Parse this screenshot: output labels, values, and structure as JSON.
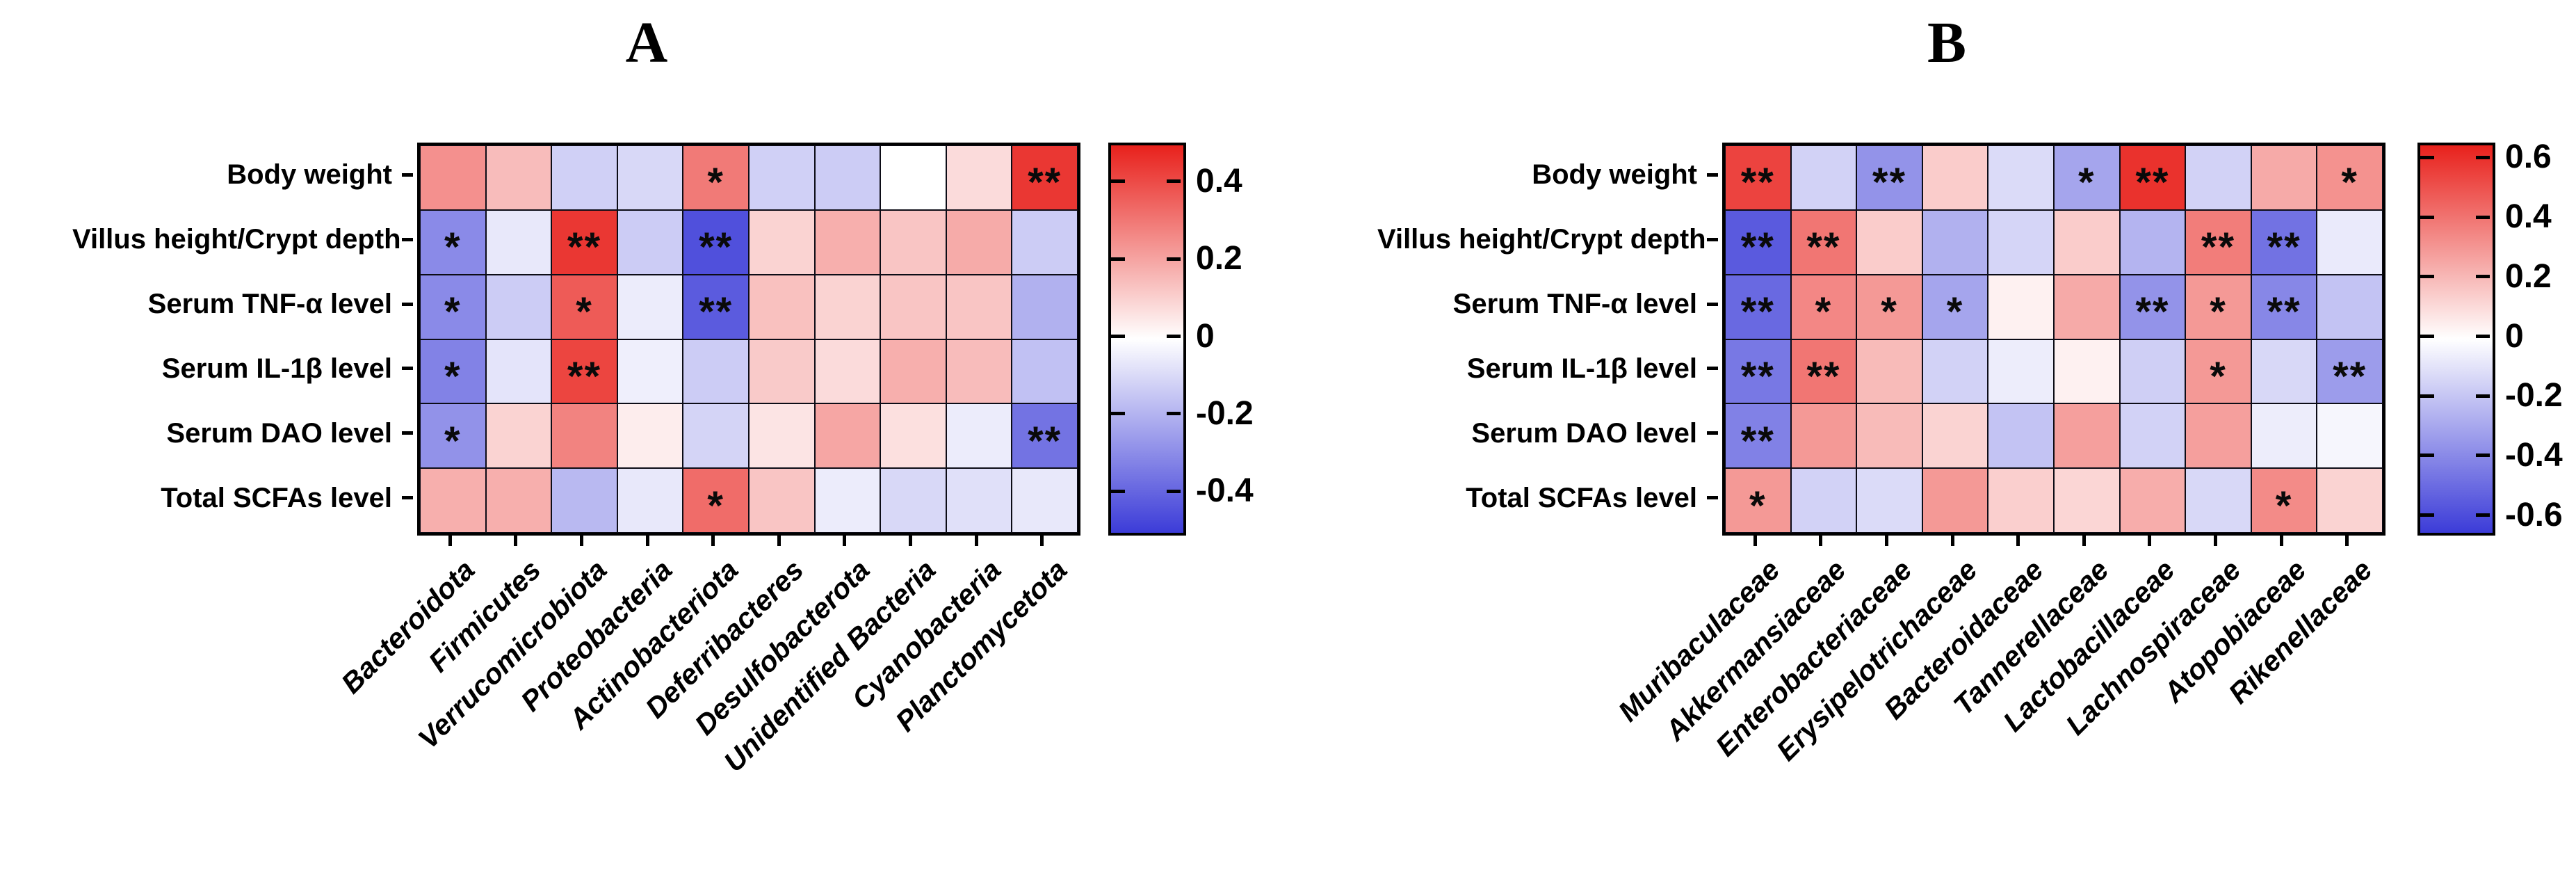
{
  "panel_titles": [
    "A",
    "B"
  ],
  "chart_data": [
    {
      "type": "heatmap",
      "title": "A",
      "rows": [
        "Body weight",
        "Villus height/Crypt depth",
        "Serum TNF-α level",
        "Serum IL-1β level",
        "Serum DAO level",
        "Total SCFAs level"
      ],
      "columns": [
        "Bacteroidota",
        "Firmicutes",
        "Verrucomicrobiota",
        "Proteobacteria",
        "Actinobacteriota",
        "Deferribacteres",
        "Desulfobacterota",
        "Unidentified Bacteria",
        "Cyanobacteria",
        "Planctomycetota"
      ],
      "values": [
        [
          0.25,
          0.15,
          -0.12,
          -0.1,
          0.3,
          -0.12,
          -0.13,
          0.0,
          0.08,
          0.45
        ],
        [
          -0.3,
          -0.06,
          0.45,
          -0.13,
          -0.45,
          0.1,
          0.18,
          0.13,
          0.19,
          -0.13
        ],
        [
          -0.3,
          -0.13,
          0.37,
          -0.05,
          -0.42,
          0.14,
          0.1,
          0.13,
          0.13,
          -0.2
        ],
        [
          -0.32,
          -0.07,
          0.42,
          -0.04,
          -0.13,
          0.12,
          0.08,
          0.18,
          0.15,
          -0.16
        ],
        [
          -0.28,
          0.1,
          0.28,
          0.04,
          -0.11,
          0.06,
          0.2,
          0.07,
          -0.05,
          -0.36
        ],
        [
          0.18,
          0.18,
          -0.18,
          -0.06,
          0.33,
          0.13,
          -0.05,
          -0.1,
          -0.08,
          -0.06
        ]
      ],
      "significance": [
        [
          "",
          "",
          "",
          "",
          "*",
          "",
          "",
          "",
          "",
          "**"
        ],
        [
          "*",
          "",
          "**",
          "",
          "**",
          "",
          "",
          "",
          "",
          ""
        ],
        [
          "*",
          "",
          "*",
          "",
          "**",
          "",
          "",
          "",
          "",
          ""
        ],
        [
          "*",
          "",
          "**",
          "",
          "",
          "",
          "",
          "",
          "",
          ""
        ],
        [
          "*",
          "",
          "",
          "",
          "",
          "",
          "",
          "",
          "",
          "**"
        ],
        [
          "",
          "",
          "",
          "",
          "*",
          "",
          "",
          "",
          "",
          ""
        ]
      ],
      "colorbar": {
        "vmin": -0.5,
        "vmax": 0.5,
        "ticks": [
          0.4,
          0.2,
          0,
          -0.2,
          -0.4
        ],
        "tick_labels": [
          "0.4",
          "0.2",
          "0",
          "-0.2",
          "-0.4"
        ],
        "positive_color": "#e8211c",
        "negative_color": "#3c3cd8",
        "zero_color": "#ffffff"
      },
      "legend_position": "right"
    },
    {
      "type": "heatmap",
      "title": "B",
      "rows": [
        "Body weight",
        "Villus height/Crypt depth",
        "Serum TNF-α level",
        "Serum IL-1β level",
        "Serum DAO level",
        "Total SCFAs level"
      ],
      "columns": [
        "Muribaculaceae",
        "Akkermansiaceae",
        "Enterobacteriaceae",
        "Erysipelotrichaceae",
        "Bacteroidaceae",
        "Tannerellaceae",
        "Lactobacillaceae",
        "Lachnospiraceae",
        "Atopobiaceae",
        "Rikenellaceae"
      ],
      "values": [
        [
          0.55,
          -0.15,
          -0.36,
          0.15,
          -0.12,
          -0.3,
          0.6,
          -0.15,
          0.25,
          0.32
        ],
        [
          -0.55,
          0.4,
          0.15,
          -0.26,
          -0.14,
          0.15,
          -0.25,
          0.38,
          -0.47,
          -0.07
        ],
        [
          -0.5,
          0.35,
          0.3,
          -0.3,
          0.04,
          0.25,
          -0.36,
          0.3,
          -0.4,
          -0.2
        ],
        [
          -0.45,
          0.4,
          0.2,
          -0.15,
          -0.06,
          0.04,
          -0.16,
          0.3,
          -0.13,
          -0.33
        ],
        [
          -0.42,
          0.3,
          0.2,
          0.13,
          -0.2,
          0.28,
          -0.15,
          0.28,
          -0.06,
          -0.03
        ],
        [
          0.3,
          -0.15,
          -0.12,
          0.3,
          0.14,
          0.12,
          0.24,
          -0.13,
          0.34,
          0.13
        ]
      ],
      "significance": [
        [
          "**",
          "",
          "**",
          "",
          "",
          "*",
          "**",
          "",
          "",
          "*"
        ],
        [
          "**",
          "**",
          "",
          "",
          "",
          "",
          "",
          "**",
          "**",
          ""
        ],
        [
          "**",
          "*",
          "*",
          "*",
          "",
          "",
          "**",
          "*",
          "**",
          ""
        ],
        [
          "**",
          "**",
          "",
          "",
          "",
          "",
          "",
          "*",
          "",
          "**"
        ],
        [
          "**",
          "",
          "",
          "",
          "",
          "",
          "",
          "",
          "",
          ""
        ],
        [
          "*",
          "",
          "",
          "",
          "",
          "",
          "",
          "",
          "*",
          ""
        ]
      ],
      "colorbar": {
        "vmin": -0.65,
        "vmax": 0.65,
        "ticks": [
          0.6,
          0.4,
          0.2,
          0,
          -0.2,
          -0.4,
          -0.6
        ],
        "tick_labels": [
          "0.6",
          "0.4",
          "0.2",
          "0",
          "-0.2",
          "-0.4",
          "-0.6"
        ],
        "positive_color": "#e8211c",
        "negative_color": "#3c3cd8",
        "zero_color": "#ffffff"
      },
      "legend_position": "right"
    }
  ]
}
